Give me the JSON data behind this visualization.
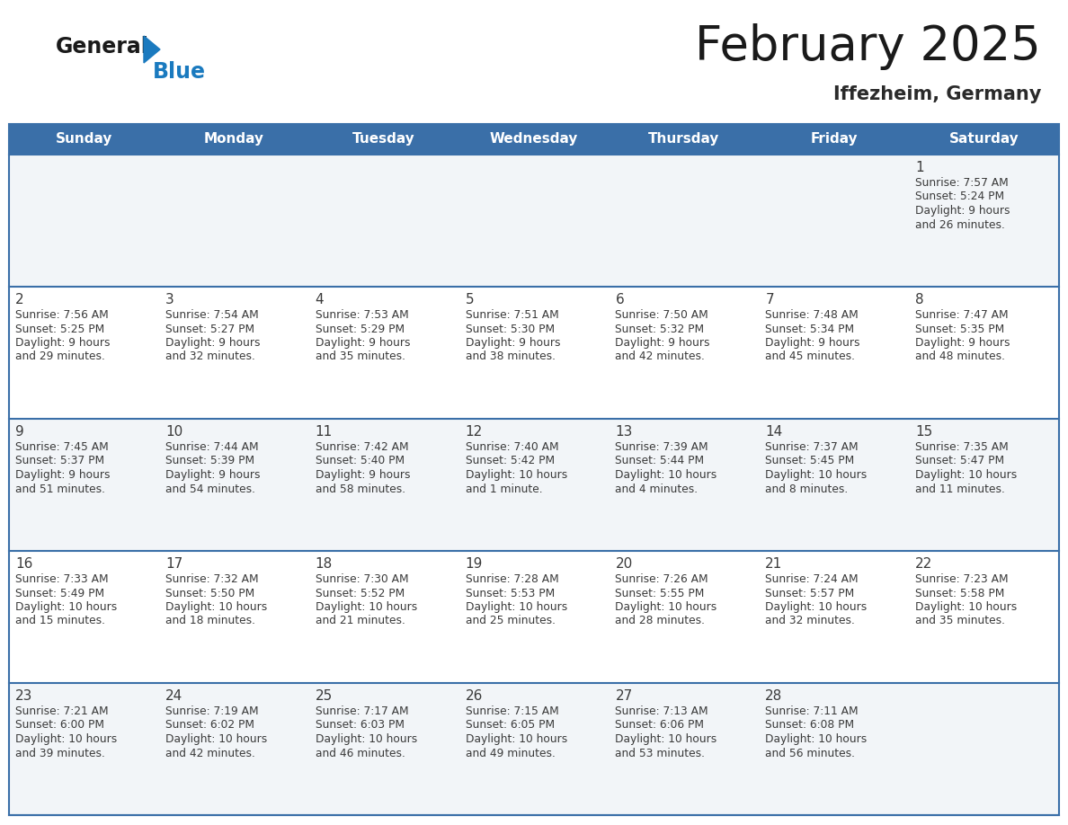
{
  "title": "February 2025",
  "subtitle": "Iffezheim, Germany",
  "days_of_week": [
    "Sunday",
    "Monday",
    "Tuesday",
    "Wednesday",
    "Thursday",
    "Friday",
    "Saturday"
  ],
  "header_bg": "#3a6fa8",
  "header_text": "#ffffff",
  "row_bg_odd": "#f2f5f8",
  "row_bg_even": "#ffffff",
  "day_number_color": "#3a3a3a",
  "text_color": "#3a3a3a",
  "line_color": "#3a6fa8",
  "logo_general_color": "#1a1a1a",
  "logo_blue_color": "#1a7abf",
  "logo_triangle_color": "#1a7abf",
  "calendar": [
    [
      null,
      null,
      null,
      null,
      null,
      null,
      1
    ],
    [
      2,
      3,
      4,
      5,
      6,
      7,
      8
    ],
    [
      9,
      10,
      11,
      12,
      13,
      14,
      15
    ],
    [
      16,
      17,
      18,
      19,
      20,
      21,
      22
    ],
    [
      23,
      24,
      25,
      26,
      27,
      28,
      null
    ]
  ],
  "day_data": {
    "1": {
      "sunrise": "7:57 AM",
      "sunset": "5:24 PM",
      "daylight_line1": "Daylight: 9 hours",
      "daylight_line2": "and 26 minutes."
    },
    "2": {
      "sunrise": "7:56 AM",
      "sunset": "5:25 PM",
      "daylight_line1": "Daylight: 9 hours",
      "daylight_line2": "and 29 minutes."
    },
    "3": {
      "sunrise": "7:54 AM",
      "sunset": "5:27 PM",
      "daylight_line1": "Daylight: 9 hours",
      "daylight_line2": "and 32 minutes."
    },
    "4": {
      "sunrise": "7:53 AM",
      "sunset": "5:29 PM",
      "daylight_line1": "Daylight: 9 hours",
      "daylight_line2": "and 35 minutes."
    },
    "5": {
      "sunrise": "7:51 AM",
      "sunset": "5:30 PM",
      "daylight_line1": "Daylight: 9 hours",
      "daylight_line2": "and 38 minutes."
    },
    "6": {
      "sunrise": "7:50 AM",
      "sunset": "5:32 PM",
      "daylight_line1": "Daylight: 9 hours",
      "daylight_line2": "and 42 minutes."
    },
    "7": {
      "sunrise": "7:48 AM",
      "sunset": "5:34 PM",
      "daylight_line1": "Daylight: 9 hours",
      "daylight_line2": "and 45 minutes."
    },
    "8": {
      "sunrise": "7:47 AM",
      "sunset": "5:35 PM",
      "daylight_line1": "Daylight: 9 hours",
      "daylight_line2": "and 48 minutes."
    },
    "9": {
      "sunrise": "7:45 AM",
      "sunset": "5:37 PM",
      "daylight_line1": "Daylight: 9 hours",
      "daylight_line2": "and 51 minutes."
    },
    "10": {
      "sunrise": "7:44 AM",
      "sunset": "5:39 PM",
      "daylight_line1": "Daylight: 9 hours",
      "daylight_line2": "and 54 minutes."
    },
    "11": {
      "sunrise": "7:42 AM",
      "sunset": "5:40 PM",
      "daylight_line1": "Daylight: 9 hours",
      "daylight_line2": "and 58 minutes."
    },
    "12": {
      "sunrise": "7:40 AM",
      "sunset": "5:42 PM",
      "daylight_line1": "Daylight: 10 hours",
      "daylight_line2": "and 1 minute."
    },
    "13": {
      "sunrise": "7:39 AM",
      "sunset": "5:44 PM",
      "daylight_line1": "Daylight: 10 hours",
      "daylight_line2": "and 4 minutes."
    },
    "14": {
      "sunrise": "7:37 AM",
      "sunset": "5:45 PM",
      "daylight_line1": "Daylight: 10 hours",
      "daylight_line2": "and 8 minutes."
    },
    "15": {
      "sunrise": "7:35 AM",
      "sunset": "5:47 PM",
      "daylight_line1": "Daylight: 10 hours",
      "daylight_line2": "and 11 minutes."
    },
    "16": {
      "sunrise": "7:33 AM",
      "sunset": "5:49 PM",
      "daylight_line1": "Daylight: 10 hours",
      "daylight_line2": "and 15 minutes."
    },
    "17": {
      "sunrise": "7:32 AM",
      "sunset": "5:50 PM",
      "daylight_line1": "Daylight: 10 hours",
      "daylight_line2": "and 18 minutes."
    },
    "18": {
      "sunrise": "7:30 AM",
      "sunset": "5:52 PM",
      "daylight_line1": "Daylight: 10 hours",
      "daylight_line2": "and 21 minutes."
    },
    "19": {
      "sunrise": "7:28 AM",
      "sunset": "5:53 PM",
      "daylight_line1": "Daylight: 10 hours",
      "daylight_line2": "and 25 minutes."
    },
    "20": {
      "sunrise": "7:26 AM",
      "sunset": "5:55 PM",
      "daylight_line1": "Daylight: 10 hours",
      "daylight_line2": "and 28 minutes."
    },
    "21": {
      "sunrise": "7:24 AM",
      "sunset": "5:57 PM",
      "daylight_line1": "Daylight: 10 hours",
      "daylight_line2": "and 32 minutes."
    },
    "22": {
      "sunrise": "7:23 AM",
      "sunset": "5:58 PM",
      "daylight_line1": "Daylight: 10 hours",
      "daylight_line2": "and 35 minutes."
    },
    "23": {
      "sunrise": "7:21 AM",
      "sunset": "6:00 PM",
      "daylight_line1": "Daylight: 10 hours",
      "daylight_line2": "and 39 minutes."
    },
    "24": {
      "sunrise": "7:19 AM",
      "sunset": "6:02 PM",
      "daylight_line1": "Daylight: 10 hours",
      "daylight_line2": "and 42 minutes."
    },
    "25": {
      "sunrise": "7:17 AM",
      "sunset": "6:03 PM",
      "daylight_line1": "Daylight: 10 hours",
      "daylight_line2": "and 46 minutes."
    },
    "26": {
      "sunrise": "7:15 AM",
      "sunset": "6:05 PM",
      "daylight_line1": "Daylight: 10 hours",
      "daylight_line2": "and 49 minutes."
    },
    "27": {
      "sunrise": "7:13 AM",
      "sunset": "6:06 PM",
      "daylight_line1": "Daylight: 10 hours",
      "daylight_line2": "and 53 minutes."
    },
    "28": {
      "sunrise": "7:11 AM",
      "sunset": "6:08 PM",
      "daylight_line1": "Daylight: 10 hours",
      "daylight_line2": "and 56 minutes."
    }
  }
}
